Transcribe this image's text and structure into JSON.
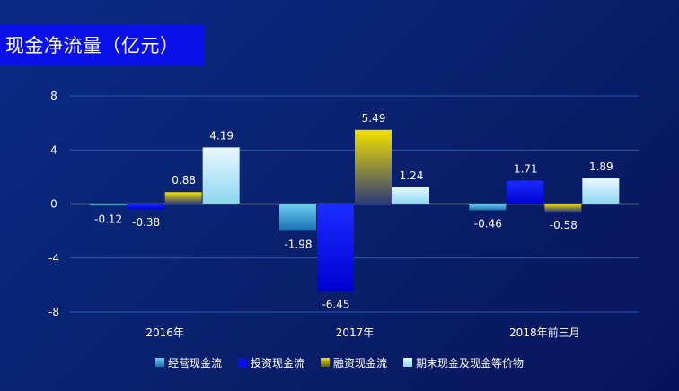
{
  "title": "现金净流量（亿元）",
  "colors": {
    "operating": [
      "#6dd0f0",
      "#1a6fb0"
    ],
    "investing": [
      "#1a2cff",
      "#0000d0"
    ],
    "financing": [
      "#f4e200",
      "#2e3a78"
    ],
    "ending_cash": [
      "#eaf8ff",
      "#8cd6f0"
    ]
  },
  "chart_data": {
    "type": "bar",
    "title": "现金净流量（亿元）",
    "categories": [
      "2016年",
      "2017年",
      "2018年前三月"
    ],
    "series": [
      {
        "name": "经营现金流",
        "values": [
          -0.12,
          -1.98,
          -0.46
        ]
      },
      {
        "name": "投资现金流",
        "values": [
          -0.38,
          -6.45,
          1.71
        ]
      },
      {
        "name": "融资现金流",
        "values": [
          0.88,
          5.49,
          -0.58
        ]
      },
      {
        "name": "期末现金及现金等价物",
        "values": [
          4.19,
          1.24,
          1.89
        ]
      }
    ],
    "ylim": [
      -8,
      8
    ],
    "yticks": [
      8,
      4,
      0,
      -4,
      -8
    ],
    "ytick_labels": [
      "8",
      "4",
      "0",
      "-4",
      "-8"
    ],
    "value_labels": [
      [
        "-0.12",
        "-1.98",
        "-0.46"
      ],
      [
        "-0.38",
        "-6.45",
        "1.71"
      ],
      [
        "0.88",
        "5.49",
        "-0.58"
      ],
      [
        "4.19",
        "1.24",
        "1.89"
      ]
    ],
    "grid": true,
    "legend_position": "bottom"
  }
}
